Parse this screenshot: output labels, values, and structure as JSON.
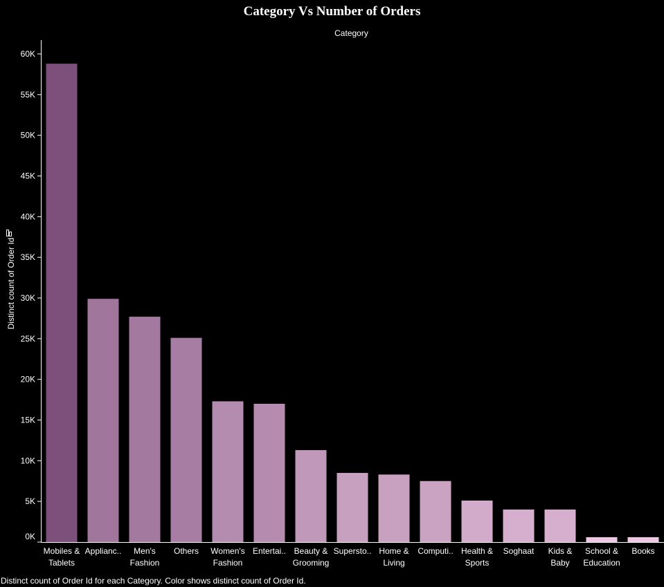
{
  "chart_data": {
    "type": "bar",
    "title": "Category Vs Number of Orders",
    "column_header": "Category",
    "xlabel": "",
    "ylabel": "Distinct count of Order Id",
    "footer": "Distinct count of Order Id for each Category.  Color shows distinct count of Order Id.",
    "categories": [
      [
        "Mobiles &",
        "Tablets"
      ],
      [
        "Applianc.."
      ],
      [
        "Men's",
        "Fashion"
      ],
      [
        "Others"
      ],
      [
        "Women's",
        "Fashion"
      ],
      [
        "Entertai.."
      ],
      [
        "Beauty &",
        "Grooming"
      ],
      [
        "Supersto.."
      ],
      [
        "Home &",
        "Living"
      ],
      [
        "Computi.."
      ],
      [
        "Health &",
        "Sports"
      ],
      [
        "Soghaat"
      ],
      [
        "Kids &",
        "Baby"
      ],
      [
        "School &",
        "Education"
      ],
      [
        "Books"
      ]
    ],
    "values": [
      58800,
      29900,
      27700,
      25100,
      17300,
      17000,
      11300,
      8500,
      8300,
      7500,
      5100,
      4000,
      4000,
      600,
      600
    ],
    "y_ticks": [
      0,
      5000,
      10000,
      15000,
      20000,
      25000,
      30000,
      35000,
      40000,
      45000,
      50000,
      55000,
      60000
    ],
    "y_tick_labels": [
      "0K",
      "5K",
      "10K",
      "15K",
      "20K",
      "25K",
      "30K",
      "35K",
      "40K",
      "45K",
      "50K",
      "55K",
      "60K"
    ],
    "ylim": [
      0,
      60000
    ],
    "grid": false,
    "legend": "none",
    "color_scale": {
      "low": "#ecc8e2",
      "high": "#7d507c"
    }
  }
}
